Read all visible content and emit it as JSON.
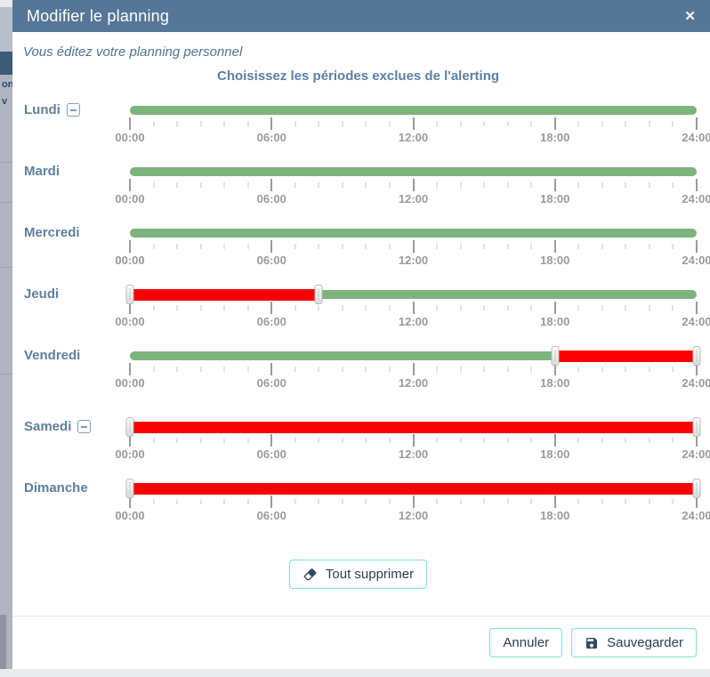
{
  "modal": {
    "title": "Modifier le planning",
    "subtitle": "Vous éditez votre planning personnel",
    "heading": "Choisissez les périodes exclues de l'alerting"
  },
  "icons": {
    "close": "✕",
    "remove_day": "minus-square",
    "clear_all": "eraser",
    "save": "floppy-disk"
  },
  "axis": {
    "range_hours": [
      0,
      24
    ],
    "minor_tick_hours": 1,
    "major_tick_hours": 6,
    "tick_labels": [
      "00:00",
      "06:00",
      "12:00",
      "18:00",
      "24:00"
    ]
  },
  "days": [
    {
      "label": "Lundi",
      "removable": true,
      "spacer_before": false,
      "segments": [
        {
          "from": 0,
          "to": 24,
          "state": "active"
        }
      ],
      "handles": []
    },
    {
      "label": "Mardi",
      "removable": false,
      "spacer_before": false,
      "segments": [
        {
          "from": 0,
          "to": 24,
          "state": "active"
        }
      ],
      "handles": []
    },
    {
      "label": "Mercredi",
      "removable": false,
      "spacer_before": false,
      "segments": [
        {
          "from": 0,
          "to": 24,
          "state": "active"
        }
      ],
      "handles": []
    },
    {
      "label": "Jeudi",
      "removable": false,
      "spacer_before": false,
      "segments": [
        {
          "from": 0,
          "to": 8,
          "state": "excluded"
        },
        {
          "from": 8,
          "to": 24,
          "state": "active"
        }
      ],
      "handles": [
        0,
        8
      ]
    },
    {
      "label": "Vendredi",
      "removable": false,
      "spacer_before": false,
      "segments": [
        {
          "from": 0,
          "to": 18,
          "state": "active"
        },
        {
          "from": 18,
          "to": 24,
          "state": "excluded"
        }
      ],
      "handles": [
        18,
        24
      ]
    },
    {
      "label": "Samedi",
      "removable": true,
      "spacer_before": true,
      "segments": [
        {
          "from": 0,
          "to": 24,
          "state": "excluded"
        }
      ],
      "handles": [
        0,
        24
      ]
    },
    {
      "label": "Dimanche",
      "removable": false,
      "spacer_before": false,
      "segments": [
        {
          "from": 0,
          "to": 24,
          "state": "excluded"
        }
      ],
      "handles": [
        0,
        24
      ]
    }
  ],
  "actions": {
    "clear_all": "Tout supprimer",
    "cancel": "Annuler",
    "save": "Sauvegarder"
  },
  "colors": {
    "header_bg": "#567697",
    "active_green": "#7cb47c",
    "excluded_red": "#fb0000",
    "accent_blue": "#5c80a5",
    "button_border_teal": "#7be0d1",
    "button_text": "#2b3e50",
    "tick_label_gray": "#9a9a9a"
  },
  "background": {
    "fragments": [
      "on",
      "v"
    ]
  }
}
